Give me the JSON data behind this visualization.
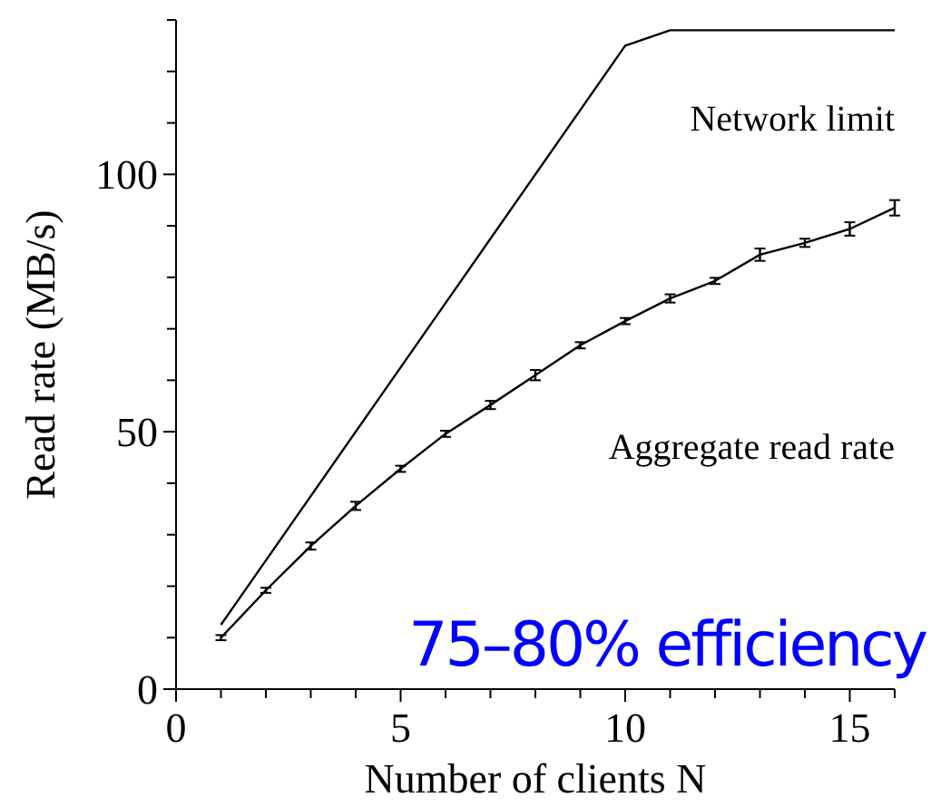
{
  "chart_data": {
    "type": "line",
    "xlabel": "Number of clients N",
    "ylabel": "Read rate (MB/s)",
    "xlim": [
      0,
      16
    ],
    "ylim": [
      0,
      130
    ],
    "xticks": [
      0,
      {
        "value": 1,
        "label": null
      },
      {
        "value": 2,
        "label": null
      },
      {
        "value": 3,
        "label": null
      },
      {
        "value": 4,
        "label": null
      },
      5,
      {
        "value": 6,
        "label": null
      },
      {
        "value": 7,
        "label": null
      },
      {
        "value": 8,
        "label": null
      },
      {
        "value": 9,
        "label": null
      },
      10,
      {
        "value": 11,
        "label": null
      },
      {
        "value": 12,
        "label": null
      },
      {
        "value": 13,
        "label": null
      },
      {
        "value": 14,
        "label": null
      },
      15,
      {
        "value": 16,
        "label": null
      }
    ],
    "yticks": [
      0,
      {
        "value": 10,
        "label": null
      },
      {
        "value": 20,
        "label": null
      },
      {
        "value": 30,
        "label": null
      },
      {
        "value": 40,
        "label": null
      },
      50,
      {
        "value": 60,
        "label": null
      },
      {
        "value": 70,
        "label": null
      },
      {
        "value": 80,
        "label": null
      },
      {
        "value": 90,
        "label": null
      },
      100,
      {
        "value": 110,
        "label": null
      },
      {
        "value": 120,
        "label": null
      },
      {
        "value": 130,
        "label": null
      }
    ],
    "series": [
      {
        "name": "Network limit",
        "color": "#000000",
        "x": [
          1,
          10,
          11,
          16
        ],
        "values": [
          12.5,
          125,
          128,
          128
        ]
      },
      {
        "name": "Aggregate read rate",
        "color": "#000000",
        "x": [
          1,
          2,
          3,
          4,
          5,
          6,
          7,
          8,
          9,
          10,
          11,
          12,
          13,
          14,
          15,
          16
        ],
        "values": [
          10,
          19.2,
          27.8,
          35.6,
          42.8,
          49.6,
          55.2,
          61,
          66.8,
          71.5,
          75.9,
          79.3,
          84.4,
          86.7,
          89.4,
          93.5
        ],
        "errors": [
          0.5,
          0.5,
          0.7,
          0.8,
          0.6,
          0.6,
          0.8,
          1,
          0.6,
          0.6,
          0.8,
          0.6,
          1.2,
          0.8,
          1.3,
          1.5
        ]
      }
    ],
    "annotations": [
      "75–80% efficiency"
    ],
    "grid": false,
    "marker": "none",
    "line_style": "solid"
  }
}
